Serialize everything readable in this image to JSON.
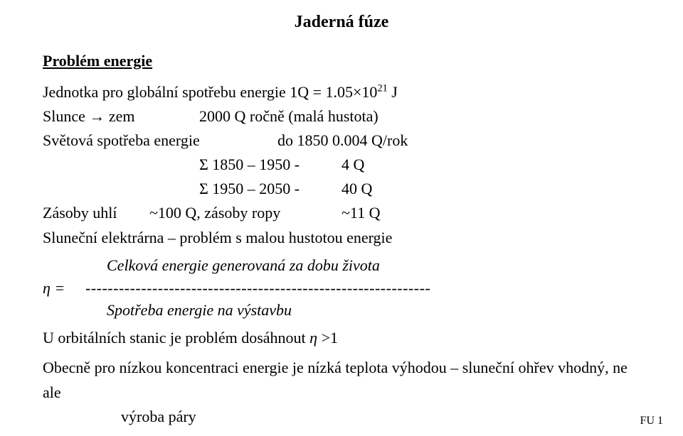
{
  "title": "Jaderná fúze",
  "section_heading": "Problém energie",
  "line_jednotka": {
    "prefix": "Jednotka pro globální spotřebu energie  1Q = 1.05×10",
    "exponent": "21",
    "suffix": " J"
  },
  "row_slunce": {
    "left": "Slunce → zem",
    "right": "2000 Q ročně  (malá hustota)"
  },
  "row_svetova": {
    "left": "Světová spotřeba energie",
    "right": "do 1850   0.004 Q/rok"
  },
  "sigma1": {
    "label": "Σ 1850 – 1950   -",
    "val": "4 Q"
  },
  "sigma2": {
    "label": "Σ 1950 – 2050   -",
    "val": "40 Q"
  },
  "zasoby": {
    "a": "Zásoby uhlí",
    "b": "~100 Q, zásoby ropy",
    "c": "~11 Q"
  },
  "slunecni_line": "Sluneční elektrárna – problém s malou hustotou energie",
  "eta": {
    "celkova": "Celková energie generovaná za dobu života",
    "sym": "η =",
    "dashes": "--------------------------------------------------------------",
    "spotreba": "Spotřeba energie na výstavbu"
  },
  "orbital_line": {
    "a": "U orbitálních stanic je problém dosáhnout ",
    "eta": "η",
    "b": " >1"
  },
  "obecne": {
    "first": "Obecně pro nízkou koncentraci energie je nízká teplota výhodou – sluneční ohřev vhodný, ne ale",
    "second": "výroba páry"
  },
  "footer": "FU   1"
}
